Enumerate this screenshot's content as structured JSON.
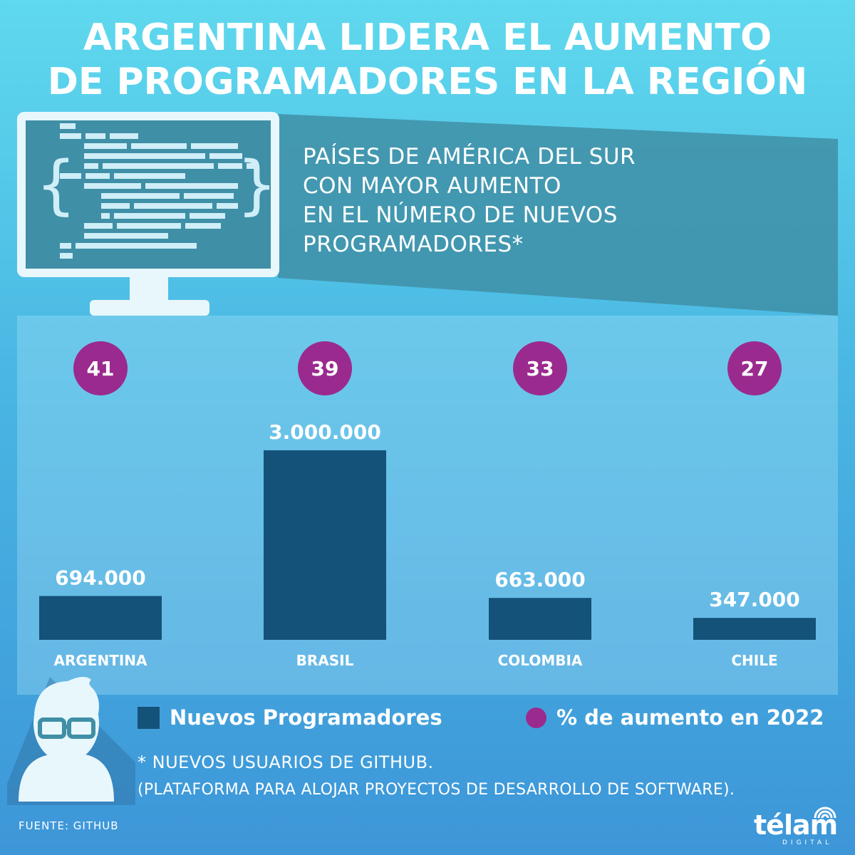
{
  "title": {
    "line1": "ARGENTINA LIDERA EL AUMENTO",
    "line2": "DE PROGRAMADORES EN LA REGIÓN"
  },
  "subtitle": {
    "line1": "PAÍSES DE AMÉRICA DEL SUR",
    "line2": "CON MAYOR AUMENTO",
    "line3": "EN EL NÚMERO DE NUEVOS",
    "line4": "PROGRAMADORES*"
  },
  "colors": {
    "bar": "#14527a",
    "percent_circle": "#9b2a8e",
    "text": "#ffffff"
  },
  "chart_data": {
    "type": "bar",
    "categories": [
      "ARGENTINA",
      "BRASIL",
      "COLOMBIA",
      "CHILE"
    ],
    "series": [
      {
        "name": "Nuevos Programadores",
        "values": [
          694000,
          3000000,
          663000,
          347000
        ],
        "labels": [
          "694.000",
          "3.000.000",
          "663.000",
          "347.000"
        ]
      },
      {
        "name": "% de aumento en 2022",
        "values": [
          41,
          39,
          33,
          27
        ],
        "labels": [
          "41",
          "39",
          "33",
          "27"
        ]
      }
    ],
    "ylim": [
      0,
      3000000
    ],
    "grid": false
  },
  "legend": {
    "bars_label": "Nuevos Programadores",
    "percent_label": "% de aumento en 2022"
  },
  "footnote": {
    "line1": "* NUEVOS USUARIOS DE GITHUB.",
    "line2": "(PLATAFORMA PARA ALOJAR PROYECTOS DE DESARROLLO DE SOFTWARE)."
  },
  "source": "FUENTE: GITHUB",
  "logo": {
    "name": "télam",
    "sub": "DIGITAL"
  },
  "icons": {
    "monitor": "monitor-code-icon",
    "person": "programmer-avatar-icon",
    "logo_signal": "wifi-signal-icon"
  }
}
